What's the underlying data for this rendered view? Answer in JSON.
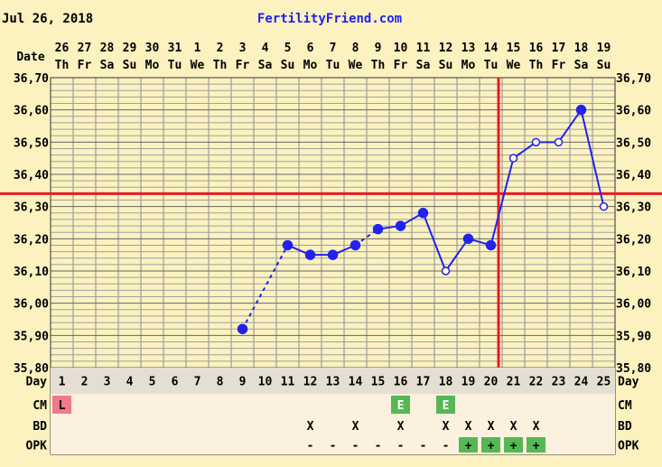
{
  "header": {
    "date": "Jul 26, 2018",
    "site": "FertilityFriend.com"
  },
  "colors": {
    "background": "#FBF2C0",
    "grid": "#8C8C8C",
    "line": "#2222EE",
    "crosshair": "#E81B23",
    "cm_l": "#F07A8A",
    "cm_e": "#55B855",
    "opk_pos": "#55B855",
    "row_fill": "#FCF0DE"
  },
  "labels": {
    "date": "Date",
    "day": "Day",
    "cm": "CM",
    "bd": "BD",
    "opk": "OPK"
  },
  "chart_data": {
    "type": "line",
    "title": "FertilityFriend.com",
    "dates": [
      "26",
      "27",
      "28",
      "29",
      "30",
      "31",
      "1",
      "2",
      "3",
      "4",
      "5",
      "6",
      "7",
      "8",
      "9",
      "10",
      "11",
      "12",
      "13",
      "14",
      "15",
      "16",
      "17",
      "18",
      "19"
    ],
    "weekdays": [
      "Th",
      "Fr",
      "Sa",
      "Su",
      "Mo",
      "Tu",
      "We",
      "Th",
      "Fr",
      "Sa",
      "Su",
      "Mo",
      "Tu",
      "We",
      "Th",
      "Fr",
      "Sa",
      "Su",
      "Mo",
      "Tu",
      "We",
      "Th",
      "Fr",
      "Sa",
      "Su"
    ],
    "days": [
      1,
      2,
      3,
      4,
      5,
      6,
      7,
      8,
      9,
      10,
      11,
      12,
      13,
      14,
      15,
      16,
      17,
      18,
      19,
      20,
      21,
      22,
      23,
      24,
      25
    ],
    "ylim": [
      35.8,
      36.7
    ],
    "y_ticks": [
      "35,80",
      "35,90",
      "36,00",
      "36,10",
      "36,20",
      "36,30",
      "36,40",
      "36,50",
      "36,60",
      "36,70"
    ],
    "temps": [
      null,
      null,
      null,
      null,
      null,
      null,
      null,
      null,
      35.92,
      null,
      36.18,
      36.15,
      36.15,
      36.18,
      36.23,
      36.24,
      36.28,
      36.1,
      36.2,
      36.18,
      36.45,
      36.5,
      36.5,
      36.6,
      36.3
    ],
    "open_points": [
      18,
      21,
      22,
      23,
      25
    ],
    "dashed_segments": [
      [
        9,
        11
      ],
      [
        14,
        15
      ]
    ],
    "coverline": 36.34,
    "ovulation_day": 20,
    "cm": {
      "1": "L",
      "16": "E",
      "18": "E"
    },
    "bd": {
      "12": "X",
      "14": "X",
      "16": "X",
      "18": "X",
      "19": "X",
      "20": "X",
      "21": "X",
      "22": "X"
    },
    "opk": {
      "12": "-",
      "13": "-",
      "14": "-",
      "15": "-",
      "16": "-",
      "17": "-",
      "18": "-",
      "19": "+",
      "20": "+",
      "21": "+",
      "22": "+"
    }
  }
}
